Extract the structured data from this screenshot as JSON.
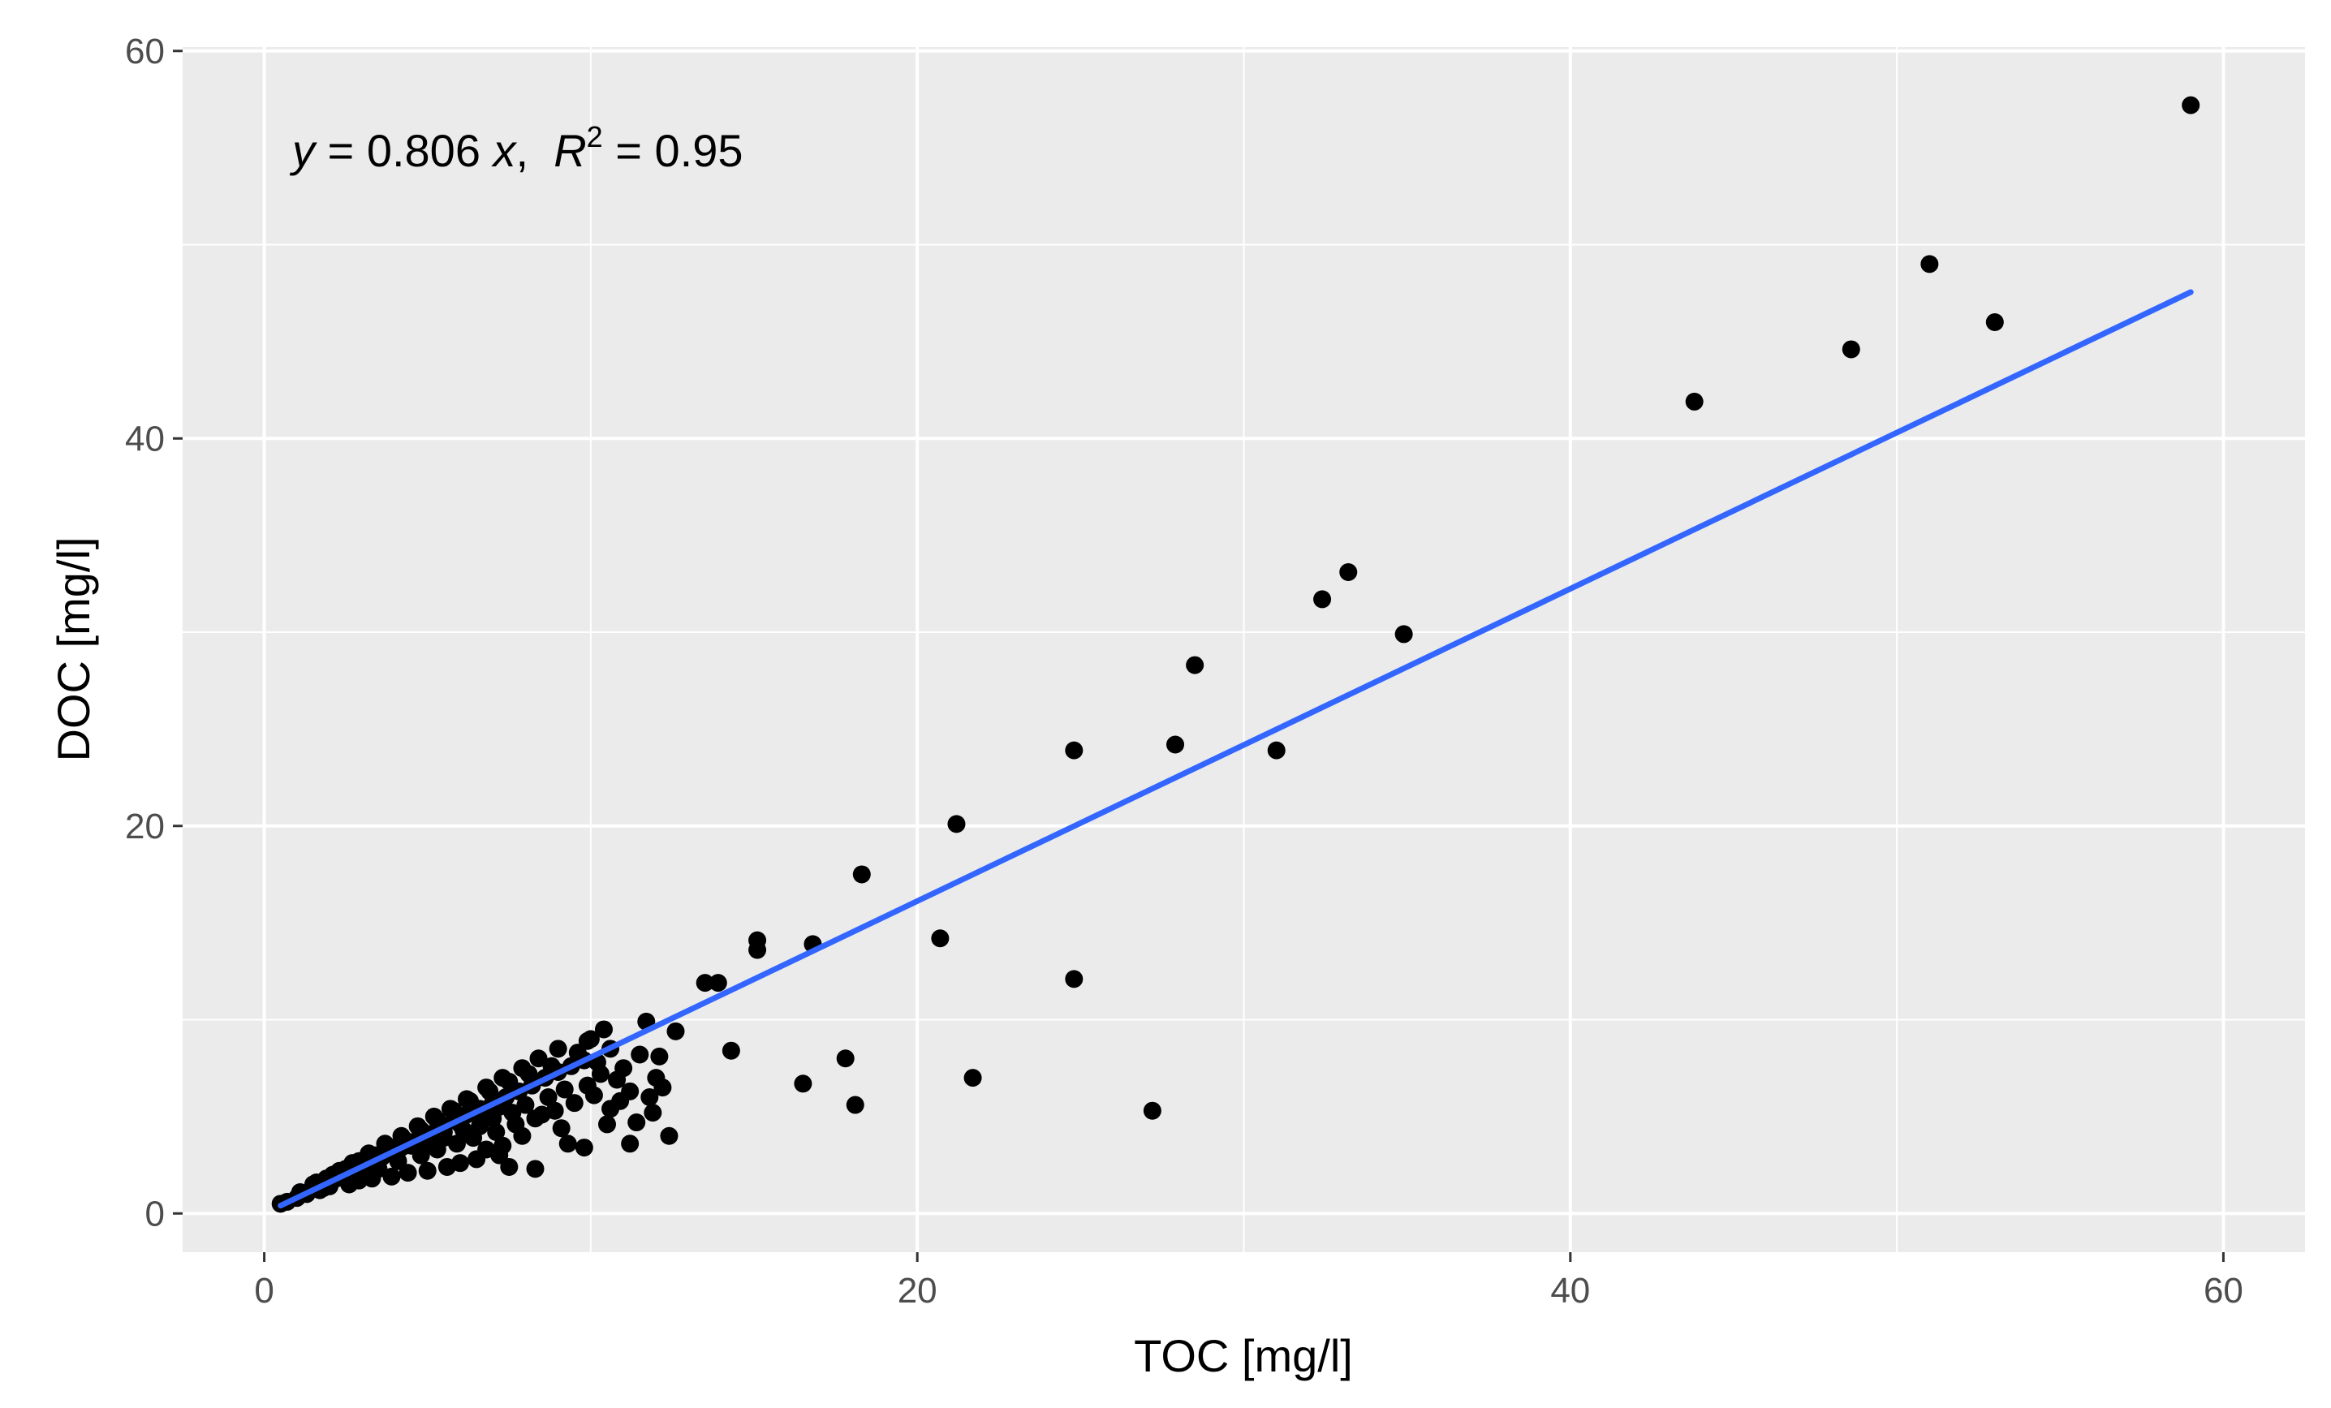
{
  "chart_data": {
    "type": "scatter",
    "title": "",
    "xlabel": "TOC [mg/l]",
    "ylabel": "DOC [mg/l]",
    "xlim": [
      -2.5,
      62.5
    ],
    "ylim": [
      -2,
      60.2
    ],
    "x_ticks": [
      0,
      20,
      40,
      60
    ],
    "x_tick_labels": [
      "0",
      "20",
      "40",
      "60"
    ],
    "y_ticks": [
      0,
      20,
      40,
      60
    ],
    "y_tick_labels": [
      "0",
      "20",
      "40",
      "60"
    ],
    "minor_x": [
      10,
      30,
      50
    ],
    "minor_y": [
      10,
      30,
      50
    ],
    "grid": true,
    "background": "#ebebeb",
    "point_color": "#000000",
    "line_color": "#3366ff",
    "annotation": {
      "y_var": "y",
      "eq": " = 0.806 ",
      "x_var": "x",
      "sep": ",  ",
      "r_var": "R",
      "r_sup": "2",
      "r_val": " = 0.95"
    },
    "fit_line": {
      "slope": 0.806,
      "x_start": 0.5,
      "x_end": 59.0
    },
    "points": [
      [
        59.0,
        57.2
      ],
      [
        51.0,
        49.0
      ],
      [
        53.0,
        46.0
      ],
      [
        48.6,
        44.6
      ],
      [
        43.8,
        41.9
      ],
      [
        33.2,
        33.1
      ],
      [
        32.4,
        31.7
      ],
      [
        34.9,
        29.9
      ],
      [
        28.5,
        28.3
      ],
      [
        27.9,
        24.2
      ],
      [
        24.8,
        23.9
      ],
      [
        31.0,
        23.9
      ],
      [
        21.2,
        20.1
      ],
      [
        18.3,
        17.5
      ],
      [
        15.1,
        14.1
      ],
      [
        15.1,
        13.6
      ],
      [
        16.8,
        13.9
      ],
      [
        20.7,
        14.2
      ],
      [
        13.5,
        11.9
      ],
      [
        13.9,
        11.9
      ],
      [
        24.8,
        12.1
      ],
      [
        14.3,
        8.4
      ],
      [
        17.8,
        8.0
      ],
      [
        16.5,
        6.7
      ],
      [
        21.7,
        7.0
      ],
      [
        18.1,
        5.6
      ],
      [
        27.2,
        5.3
      ],
      [
        12.6,
        9.4
      ],
      [
        11.7,
        9.9
      ],
      [
        12.1,
        8.1
      ],
      [
        10.4,
        9.5
      ],
      [
        9.9,
        8.9
      ],
      [
        9.0,
        8.5
      ],
      [
        8.4,
        8.0
      ],
      [
        7.9,
        7.5
      ],
      [
        7.3,
        7.0
      ],
      [
        6.8,
        6.5
      ],
      [
        6.2,
        5.9
      ],
      [
        5.7,
        5.4
      ],
      [
        5.2,
        5.0
      ],
      [
        4.7,
        4.5
      ],
      [
        4.2,
        4.0
      ],
      [
        3.7,
        3.6
      ],
      [
        3.2,
        3.1
      ],
      [
        2.7,
        2.6
      ],
      [
        2.3,
        2.2
      ],
      [
        1.9,
        1.8
      ],
      [
        1.5,
        1.5
      ],
      [
        1.1,
        1.1
      ],
      [
        0.7,
        0.6
      ],
      [
        0.5,
        0.5
      ],
      [
        1.0,
        0.8
      ],
      [
        1.3,
        1.0
      ],
      [
        1.8,
        1.3
      ],
      [
        2.2,
        1.8
      ],
      [
        2.6,
        2.2
      ],
      [
        3.0,
        2.5
      ],
      [
        3.4,
        2.8
      ],
      [
        3.8,
        3.1
      ],
      [
        4.2,
        3.4
      ],
      [
        4.6,
        3.7
      ],
      [
        5.0,
        4.1
      ],
      [
        5.4,
        4.4
      ],
      [
        5.8,
        4.8
      ],
      [
        6.2,
        5.1
      ],
      [
        6.6,
        5.4
      ],
      [
        7.0,
        5.7
      ],
      [
        7.4,
        6.0
      ],
      [
        7.8,
        6.3
      ],
      [
        8.2,
        6.6
      ],
      [
        8.6,
        7.0
      ],
      [
        9.0,
        7.3
      ],
      [
        9.4,
        7.6
      ],
      [
        9.8,
        7.9
      ],
      [
        10.3,
        7.2
      ],
      [
        10.8,
        6.9
      ],
      [
        11.2,
        6.3
      ],
      [
        11.8,
        6.0
      ],
      [
        12.0,
        7.0
      ],
      [
        11.9,
        5.2
      ],
      [
        12.4,
        4.0
      ],
      [
        11.4,
        4.7
      ],
      [
        10.5,
        4.6
      ],
      [
        11.2,
        3.6
      ],
      [
        9.8,
        3.4
      ],
      [
        9.3,
        3.6
      ],
      [
        8.3,
        2.3
      ],
      [
        7.5,
        2.4
      ],
      [
        7.2,
        3.0
      ],
      [
        6.5,
        2.8
      ],
      [
        6.0,
        2.6
      ],
      [
        5.6,
        2.4
      ],
      [
        5.0,
        2.2
      ],
      [
        4.4,
        2.1
      ],
      [
        3.9,
        1.9
      ],
      [
        3.3,
        1.8
      ],
      [
        2.9,
        1.7
      ],
      [
        2.6,
        1.5
      ],
      [
        2.0,
        1.4
      ],
      [
        1.7,
        1.2
      ],
      [
        3.5,
        2.3
      ],
      [
        4.1,
        2.7
      ],
      [
        4.8,
        3.0
      ],
      [
        5.3,
        3.3
      ],
      [
        5.9,
        3.6
      ],
      [
        6.4,
        3.9
      ],
      [
        7.1,
        4.2
      ],
      [
        7.7,
        4.6
      ],
      [
        8.3,
        4.9
      ],
      [
        8.9,
        5.3
      ],
      [
        9.5,
        5.7
      ],
      [
        10.1,
        6.1
      ],
      [
        10.6,
        5.4
      ],
      [
        9.9,
        6.6
      ],
      [
        9.2,
        6.4
      ],
      [
        8.7,
        6.0
      ],
      [
        8.0,
        5.6
      ],
      [
        7.6,
        5.2
      ],
      [
        7.0,
        4.9
      ],
      [
        6.6,
        4.5
      ],
      [
        6.1,
        4.3
      ],
      [
        5.5,
        3.9
      ],
      [
        5.1,
        3.6
      ],
      [
        4.5,
        3.5
      ],
      [
        4.0,
        3.2
      ],
      [
        3.6,
        2.9
      ],
      [
        3.1,
        2.6
      ],
      [
        2.5,
        2.3
      ],
      [
        2.1,
        2.0
      ],
      [
        1.6,
        1.6
      ],
      [
        7.5,
        6.8
      ],
      [
        6.9,
        6.3
      ],
      [
        6.3,
        5.8
      ],
      [
        5.8,
        5.3
      ],
      [
        5.3,
        4.8
      ],
      [
        4.8,
        4.3
      ],
      [
        4.3,
        3.8
      ],
      [
        3.9,
        3.4
      ],
      [
        3.4,
        3.0
      ],
      [
        2.9,
        2.7
      ],
      [
        8.1,
        7.2
      ],
      [
        8.8,
        7.6
      ],
      [
        9.6,
        8.3
      ],
      [
        10.0,
        9.0
      ],
      [
        10.6,
        8.5
      ],
      [
        7.2,
        5.5
      ],
      [
        6.7,
        5.0
      ],
      [
        6.0,
        4.6
      ],
      [
        5.5,
        4.2
      ],
      [
        4.9,
        3.8
      ],
      [
        8.5,
        5.1
      ],
      [
        9.1,
        4.4
      ],
      [
        7.9,
        4.0
      ],
      [
        7.3,
        3.5
      ],
      [
        6.8,
        3.3
      ],
      [
        10.2,
        7.8
      ],
      [
        11.0,
        7.5
      ],
      [
        11.5,
        8.2
      ],
      [
        12.2,
        6.5
      ],
      [
        10.9,
        5.8
      ]
    ]
  }
}
